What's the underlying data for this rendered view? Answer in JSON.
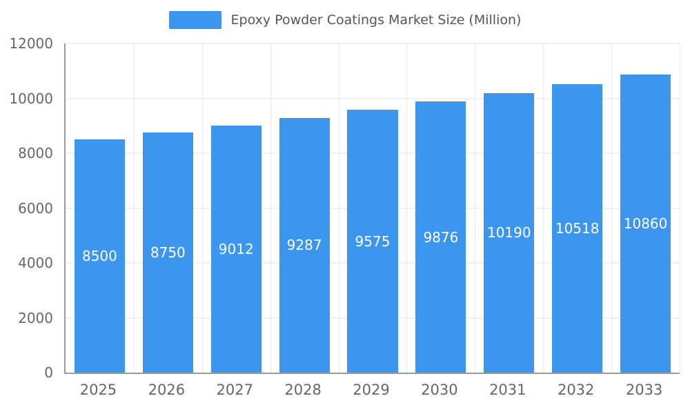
{
  "chart_data": {
    "type": "bar",
    "title": "Epoxy Powder Coatings Market Size (Million)",
    "categories": [
      "2025",
      "2026",
      "2027",
      "2028",
      "2029",
      "2030",
      "2031",
      "2032",
      "2033"
    ],
    "values": [
      8500,
      8750,
      9012,
      9287,
      9575,
      9876,
      10190,
      10518,
      10860
    ],
    "xlabel": "",
    "ylabel": "",
    "ylim": [
      0,
      12000
    ],
    "yticks": [
      0,
      2000,
      4000,
      6000,
      8000,
      10000,
      12000
    ],
    "grid": true,
    "legend_position": "top",
    "colors": {
      "bar": "#3d96ee",
      "value_label": "#ffffff",
      "axis_line": "#9a9a9a",
      "gridline": "#e0e0e0",
      "tick_text": "#666666",
      "legend_text": "#555555",
      "background": "#ffffff"
    }
  }
}
